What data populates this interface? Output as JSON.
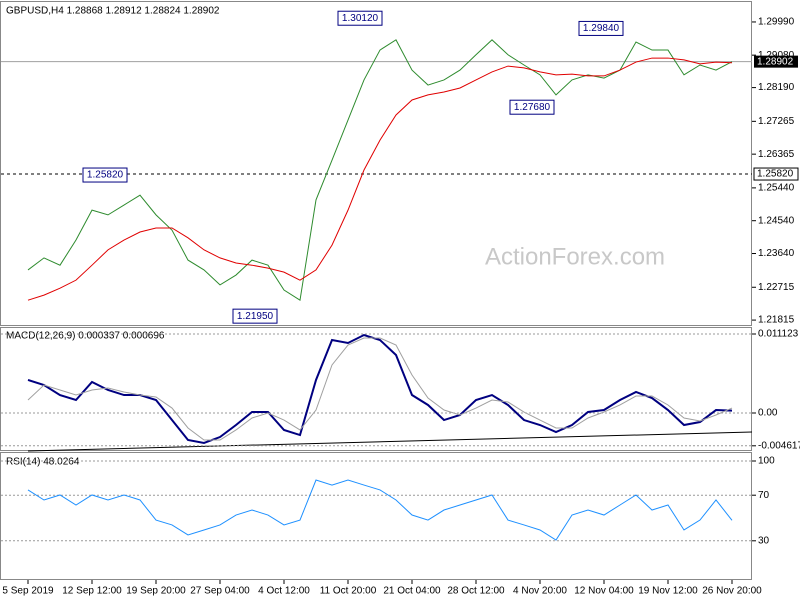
{
  "chart_data": [
    {
      "type": "line",
      "title": "GBPUSD,H4  1.28868 1.28912 1.28824 1.28902",
      "watermark": "ActionForex.com",
      "ylim": [
        1.2168,
        1.3051
      ],
      "yticks": [
        {
          "value": 1.2999,
          "label": "1.29990"
        },
        {
          "value": 1.2908,
          "label": "1.29080"
        },
        {
          "value": 1.2819,
          "label": "1.28190"
        },
        {
          "value": 1.27265,
          "label": "1.27265"
        },
        {
          "value": 1.26365,
          "label": "1.26365"
        },
        {
          "value": 1.2544,
          "label": "1.25440"
        },
        {
          "value": 1.2454,
          "label": "1.24540"
        },
        {
          "value": 1.2364,
          "label": "1.23640"
        },
        {
          "value": 1.22715,
          "label": "1.22715"
        },
        {
          "value": 1.21815,
          "label": "1.21815"
        }
      ],
      "grid": false,
      "series": [
        {
          "color": "#2e8b2e",
          "values": [
            1.2319,
            1.2352,
            1.2332,
            1.2401,
            1.2483,
            1.247,
            1.2497,
            1.2524,
            1.247,
            1.2428,
            1.2346,
            1.2319,
            1.2278,
            1.2305,
            1.2346,
            1.2332,
            1.2264,
            1.2236,
            1.2511,
            1.262,
            1.273,
            1.284,
            1.2922,
            1.295,
            1.2867,
            1.2826,
            1.284,
            1.2867,
            1.2909,
            1.295,
            1.2909,
            1.2881,
            1.2854,
            1.2799,
            1.284,
            1.2854,
            1.2845,
            1.2867,
            1.2944,
            1.2922,
            1.2922,
            1.2854,
            1.2881,
            1.2867,
            1.289
          ]
        },
        {
          "color": "#e00000",
          "values": [
            1.2236,
            1.225,
            1.2269,
            1.2291,
            1.2332,
            1.2374,
            1.2401,
            1.2423,
            1.2434,
            1.2434,
            1.2407,
            1.2374,
            1.2352,
            1.2338,
            1.2332,
            1.2324,
            1.2313,
            1.2291,
            1.2319,
            1.2387,
            1.2483,
            1.2593,
            1.2675,
            1.2744,
            1.2785,
            1.2799,
            1.2807,
            1.2818,
            1.284,
            1.2862,
            1.2878,
            1.2873,
            1.2862,
            1.2854,
            1.2856,
            1.2851,
            1.2851,
            1.2867,
            1.2889,
            1.29,
            1.29,
            1.2895,
            1.2884,
            1.2889,
            1.2887
          ]
        }
      ],
      "current": {
        "value": 1.28902,
        "label": "1.28902"
      },
      "level": {
        "value": 1.2582,
        "label": "1.25820"
      },
      "annotations": [
        {
          "value": 1.3012,
          "label": "1.30120"
        },
        {
          "value": 1.2984,
          "label": "1.29840"
        },
        {
          "value": 1.2768,
          "label": "1.27680"
        },
        {
          "value": 1.2582,
          "label": "1.25820"
        },
        {
          "value": 1.2195,
          "label": "1.21950"
        }
      ]
    },
    {
      "type": "line",
      "title": "MACD(12,26,9) 0.000337 0.000696",
      "ylim": [
        -0.00535,
        0.01211
      ],
      "yticks": [
        0.011123,
        {
          "value": 0,
          "label": "0.00"
        },
        -0.004617
      ],
      "grid": true,
      "series": [
        {
          "color": "#000080",
          "values": [
            0.00465,
            0.00394,
            0.00253,
            0.00183,
            0.00437,
            0.00324,
            0.00253,
            0.00253,
            0.00183,
            -0.00099,
            -0.0038,
            -0.00422,
            -0.00338,
            -0.00169,
            0.00014,
            0.00014,
            -0.00239,
            -0.0031,
            0.00465,
            0.01028,
            0.00986,
            0.01098,
            0.01028,
            0.00817,
            0.00253,
            0.00113,
            -0.00099,
            -0.00028,
            0.00183,
            0.00253,
            0.00113,
            -0.00099,
            -0.00169,
            -0.00268,
            -0.00169,
            0.00014,
            0.00042,
            0.00183,
            0.00296,
            0.00211,
            0.00042,
            -0.00169,
            -0.00127,
            0.00042,
            0.00034
          ]
        },
        {
          "color": "#a0a0a0",
          "values": [
            0.00183,
            0.00394,
            0.00324,
            0.00253,
            0.00324,
            0.00352,
            0.00296,
            0.00253,
            0.00225,
            0.0007,
            -0.00211,
            -0.0038,
            -0.0038,
            -0.00239,
            -0.0007,
            0,
            -0.00099,
            -0.00239,
            0.00042,
            0.00676,
            0.00957,
            0.01056,
            0.01056,
            0.00957,
            0.00535,
            0.00211,
            0.00042,
            -0.00028,
            0.0007,
            0.00183,
            0.00155,
            0.00014,
            -0.00099,
            -0.00211,
            -0.00211,
            -0.0007,
            0.00014,
            0.00113,
            0.00239,
            0.00239,
            0.00113,
            -0.0007,
            -0.00113,
            -0.00028,
            0.0007
          ]
        }
      ]
    },
    {
      "type": "line",
      "title": "RSI(14) 48.0264",
      "ylim": [
        0,
        100
      ],
      "yticks": [
        100,
        70,
        30
      ],
      "grid": true,
      "categories": [
        "5 Sep 2019",
        null,
        null,
        null,
        "12 Sep 12:00",
        null,
        null,
        null,
        "19 Sep 20:00",
        null,
        null,
        null,
        "27 Sep 04:00",
        null,
        null,
        null,
        "4 Oct 12:00",
        null,
        null,
        null,
        "11 Oct 20:00",
        null,
        null,
        null,
        "21 Oct 04:00",
        null,
        null,
        null,
        "28 Oct 12:00",
        null,
        null,
        null,
        "4 Nov 20:00",
        null,
        null,
        null,
        "12 Nov 04:00",
        null,
        null,
        null,
        "19 Nov 12:00",
        null,
        null,
        null,
        "26 Nov 20:00"
      ],
      "series": [
        {
          "color": "#1e90ff",
          "values": [
            74.6,
            65.8,
            70.2,
            61.4,
            70.2,
            65.8,
            70.2,
            65.8,
            48.2,
            43.9,
            35.1,
            39.5,
            43.9,
            52.6,
            57.0,
            52.6,
            43.9,
            48.2,
            83.3,
            78.9,
            83.3,
            78.9,
            74.6,
            65.8,
            52.6,
            48.2,
            57.0,
            61.4,
            65.8,
            70.2,
            48.2,
            43.9,
            39.5,
            30.7,
            52.6,
            57.0,
            52.6,
            61.4,
            70.2,
            57.0,
            61.4,
            39.5,
            48.2,
            65.8,
            48.0
          ]
        }
      ]
    }
  ]
}
